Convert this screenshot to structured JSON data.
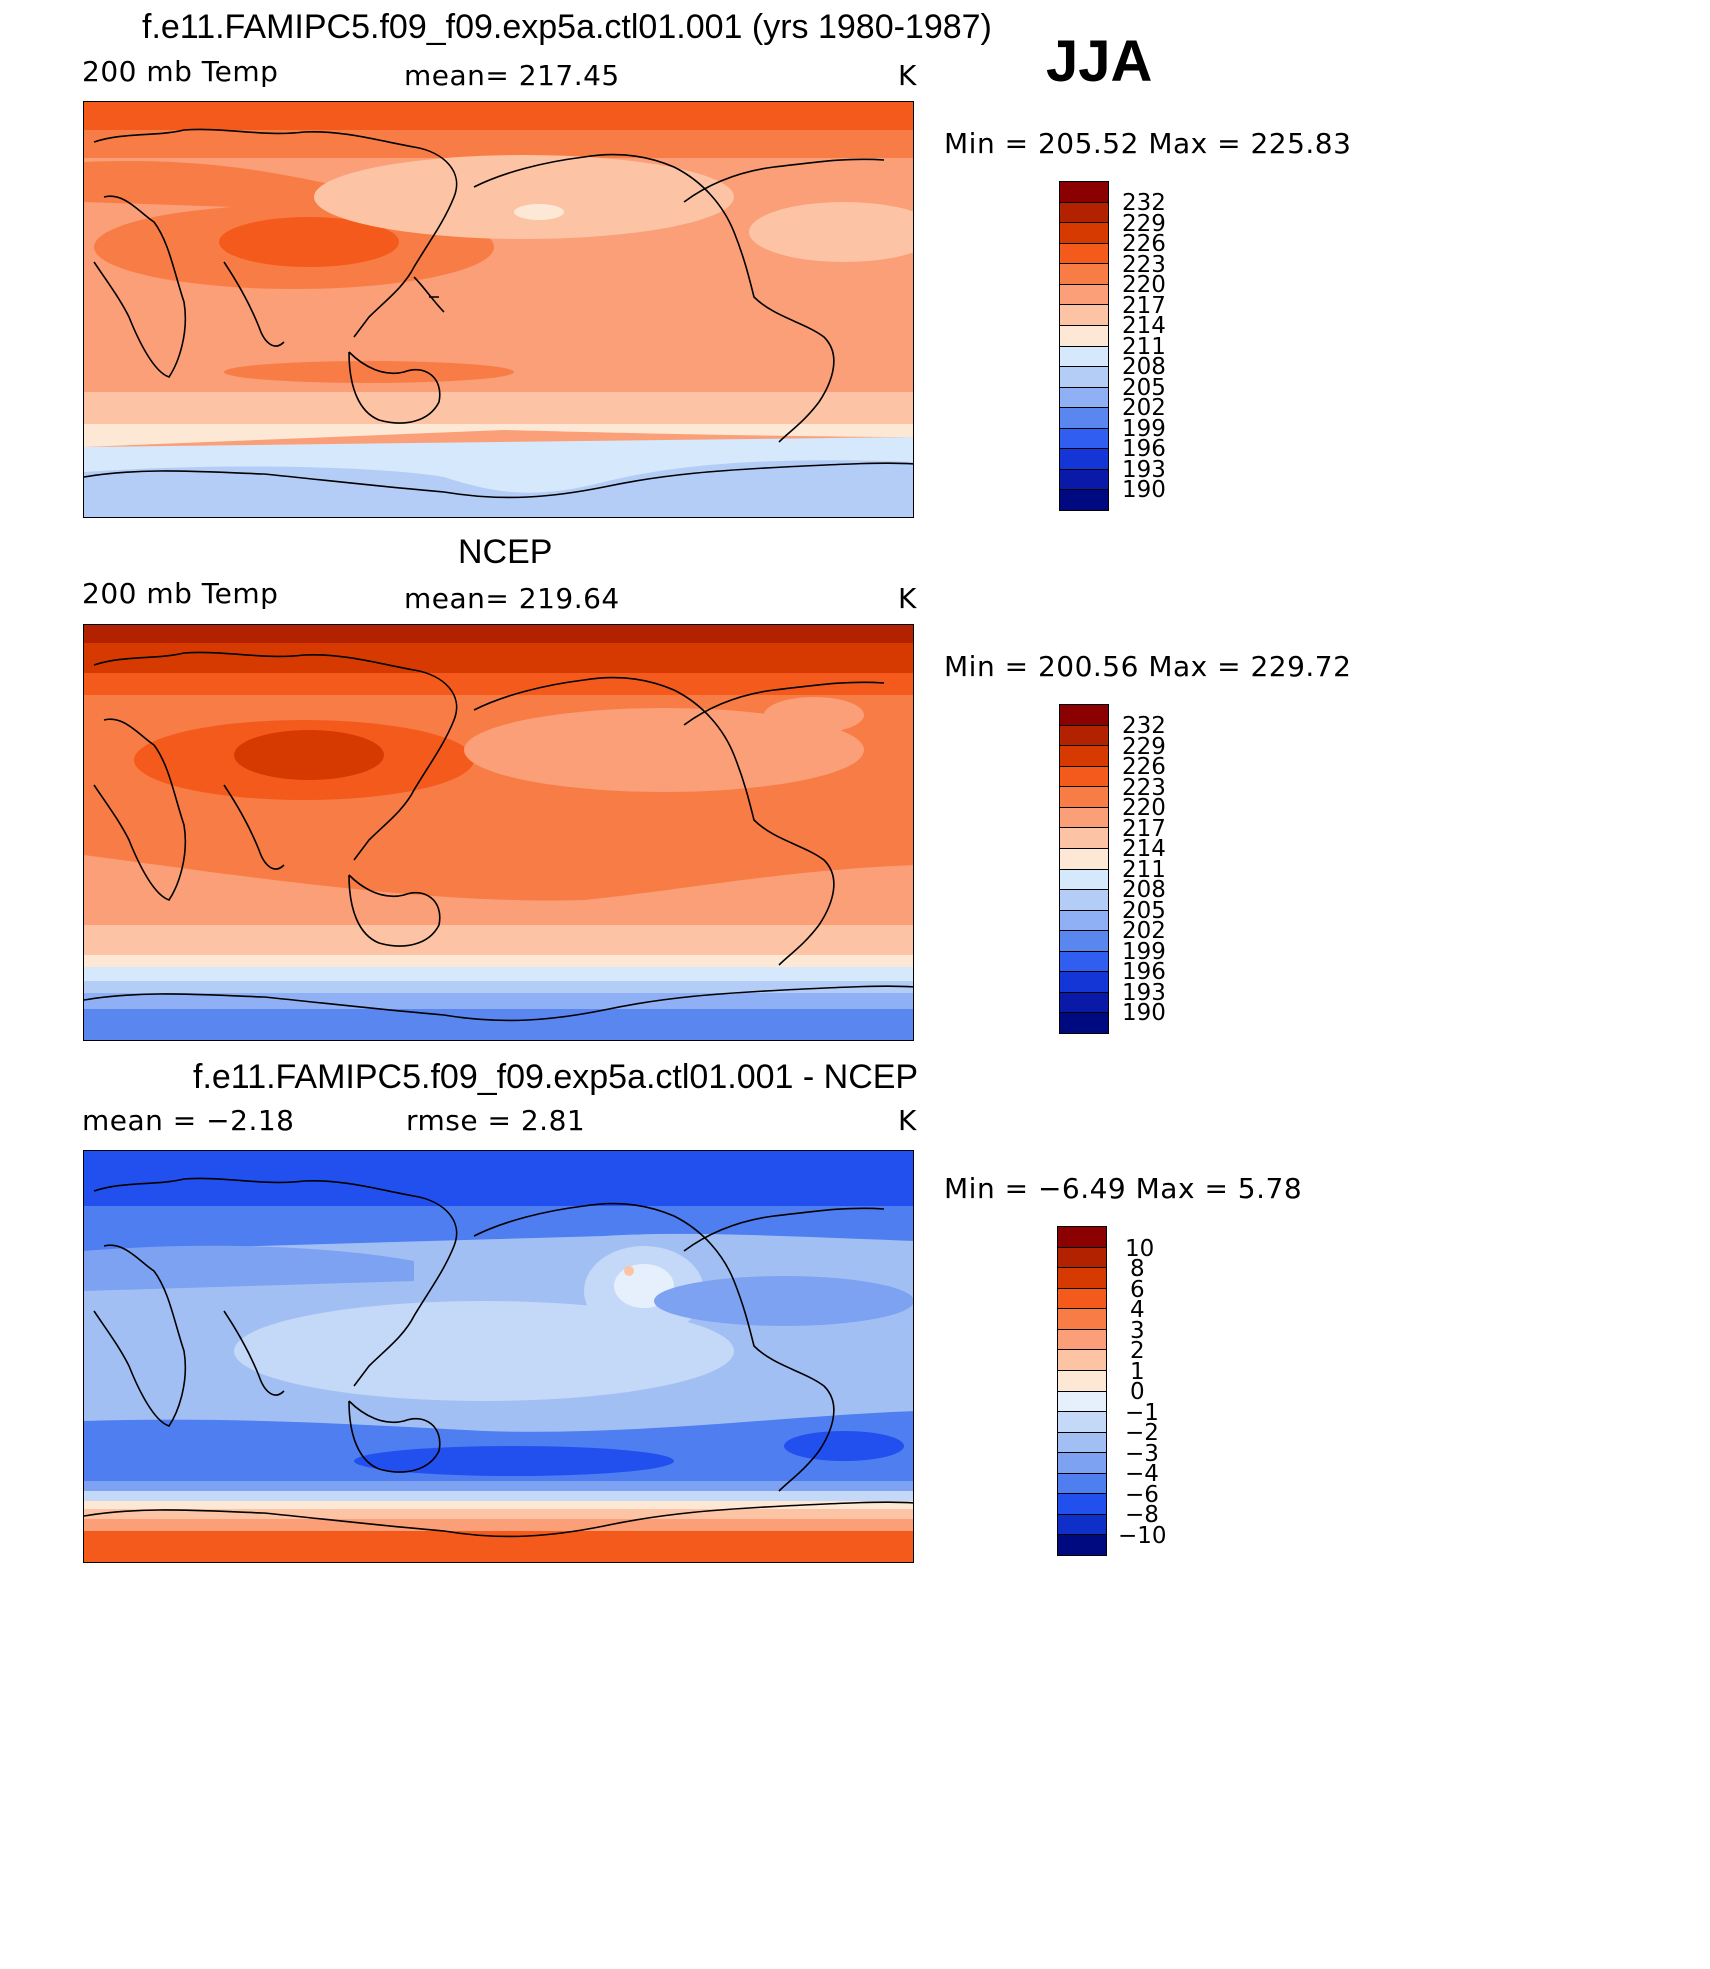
{
  "season": "JJA",
  "panels": [
    {
      "title": "f.e11.FAMIPC5.f09_f09.exp5a.ctl01.001 (yrs 1980-1987)",
      "left_label": "200 mb Temp",
      "center_label": "mean= 217.45",
      "units": "K",
      "minmax": "Min = 205.52 Max = 225.83",
      "ticks": [
        "232",
        "229",
        "226",
        "223",
        "220",
        "217",
        "214",
        "211",
        "208",
        "205",
        "202",
        "199",
        "196",
        "193",
        "190"
      ]
    },
    {
      "title": "NCEP",
      "left_label": "200 mb Temp",
      "center_label": "mean= 219.64",
      "units": "K",
      "minmax": "Min = 200.56 Max = 229.72",
      "ticks": [
        "232",
        "229",
        "226",
        "223",
        "220",
        "217",
        "214",
        "211",
        "208",
        "205",
        "202",
        "199",
        "196",
        "193",
        "190"
      ]
    },
    {
      "title": "f.e11.FAMIPC5.f09_f09.exp5a.ctl01.001 - NCEP",
      "left_label": "mean =   −2.18",
      "center_label": "rmse =    2.81",
      "units": "K",
      "minmax": "Min =   −6.49 Max =     5.78",
      "ticks": [
        "10",
        "8",
        "6",
        "4",
        "3",
        "2",
        "1",
        "0",
        "−1",
        "−2",
        "−3",
        "−4",
        "−6",
        "−8",
        "−10"
      ]
    }
  ],
  "colorbar_colors": [
    "#8b0000",
    "#b22200",
    "#d63a00",
    "#f45a1c",
    "#f87c45",
    "#fa9f78",
    "#fcc4a4",
    "#fde8d6",
    "#d6e8fb",
    "#b3cdf7",
    "#8fb0f4",
    "#5a86f0",
    "#2f5ef0",
    "#1536d6",
    "#0a1aa8",
    "#000a80"
  ],
  "diff_colorbar_colors": [
    "#8b0000",
    "#b22200",
    "#d63a00",
    "#f45a1c",
    "#f87c45",
    "#fa9f78",
    "#fcc4a4",
    "#fde8d6",
    "#e6f0fc",
    "#c4d8f8",
    "#a2bff4",
    "#7ea2f2",
    "#4e7ef0",
    "#2150ee",
    "#0e2fc8",
    "#000a80"
  ],
  "chart_data": [
    {
      "type": "heatmap",
      "title": "f.e11.FAMIPC5.f09_f09.exp5a.ctl01.001 (yrs 1980-1987)",
      "variable": "200 mb Temp",
      "units": "K",
      "mean": 217.45,
      "min": 205.52,
      "max": 225.83,
      "contour_levels": [
        190,
        193,
        196,
        199,
        202,
        205,
        208,
        211,
        214,
        217,
        220,
        223,
        226,
        229,
        232
      ]
    },
    {
      "type": "heatmap",
      "title": "NCEP",
      "variable": "200 mb Temp",
      "units": "K",
      "mean": 219.64,
      "min": 200.56,
      "max": 229.72,
      "contour_levels": [
        190,
        193,
        196,
        199,
        202,
        205,
        208,
        211,
        214,
        217,
        220,
        223,
        226,
        229,
        232
      ]
    },
    {
      "type": "heatmap",
      "title": "f.e11.FAMIPC5.f09_f09.exp5a.ctl01.001 - NCEP",
      "units": "K",
      "mean": -2.18,
      "rmse": 2.81,
      "min": -6.49,
      "max": 5.78,
      "contour_levels": [
        -10,
        -8,
        -6,
        -4,
        -3,
        -2,
        -1,
        0,
        1,
        2,
        3,
        4,
        6,
        8,
        10
      ]
    }
  ]
}
